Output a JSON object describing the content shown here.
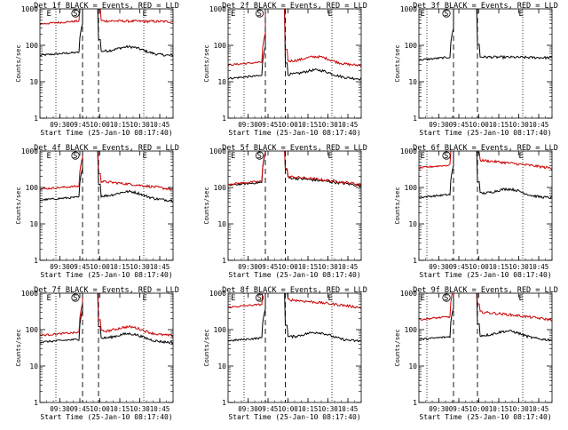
{
  "figure": {
    "xlabel": "Start Time (25-Jan-10 08:17:40)",
    "ylabel": "Counts/sec"
  },
  "chart_data": [
    {
      "type": "line",
      "title": "Det 1f BLACK = Events, RED = LLD",
      "ylim": [
        1,
        1000
      ],
      "yscale": "log",
      "x_ticks": [
        "09:30",
        "09:45",
        "10:00",
        "10:15",
        "10:30",
        "10:45"
      ],
      "y_ticks": [
        "1",
        "10",
        "100",
        "1000"
      ],
      "markers": [
        "E",
        "S",
        "E"
      ],
      "grid": false,
      "series": [
        {
          "name": "BLACK = Events",
          "color": "#000000",
          "base": 65,
          "shape": "hump"
        },
        {
          "name": "RED = LLD",
          "color": "#cc0000",
          "base": 470,
          "shape": "flat"
        }
      ]
    },
    {
      "type": "line",
      "title": "Det 2f BLACK = Events, RED = LLD",
      "ylim": [
        1,
        1000
      ],
      "yscale": "log",
      "x_ticks": [
        "09:30",
        "09:45",
        "10:00",
        "10:15",
        "10:30",
        "10:45"
      ],
      "y_ticks": [
        "1",
        "10",
        "100",
        "1000"
      ],
      "markers": [
        "E",
        "S",
        "E"
      ],
      "grid": false,
      "series": [
        {
          "name": "BLACK = Events",
          "color": "#000000",
          "base": 15,
          "shape": "hump"
        },
        {
          "name": "RED = LLD",
          "color": "#cc0000",
          "base": 35,
          "shape": "hump"
        }
      ]
    },
    {
      "type": "line",
      "title": "Det 3f BLACK = Events, RED = LLD",
      "ylim": [
        1,
        1000
      ],
      "yscale": "log",
      "x_ticks": [
        "09:30",
        "09:45",
        "10:00",
        "10:15",
        "10:30",
        "10:45"
      ],
      "y_ticks": [
        "1",
        "10",
        "100",
        "1000"
      ],
      "markers": [
        "E",
        "S",
        "E"
      ],
      "grid": false,
      "series": [
        {
          "name": "BLACK = Events",
          "color": "#000000",
          "base": 48,
          "shape": "flat"
        }
      ]
    },
    {
      "type": "line",
      "title": "Det 4f BLACK = Events, RED = LLD",
      "ylim": [
        1,
        1000
      ],
      "yscale": "log",
      "x_ticks": [
        "09:30",
        "09:45",
        "10:00",
        "10:15",
        "10:30",
        "10:45"
      ],
      "y_ticks": [
        "1",
        "10",
        "100",
        "1000"
      ],
      "markers": [
        "E",
        "S",
        "E"
      ],
      "grid": false,
      "series": [
        {
          "name": "BLACK = Events",
          "color": "#000000",
          "base": 55,
          "shape": "hump"
        },
        {
          "name": "RED = LLD",
          "color": "#cc0000",
          "base": 110,
          "shape": "decay"
        }
      ]
    },
    {
      "type": "line",
      "title": "Det 5f BLACK = Events, RED = LLD",
      "ylim": [
        1,
        1000
      ],
      "yscale": "log",
      "x_ticks": [
        "09:30",
        "09:45",
        "10:00",
        "10:15",
        "10:30",
        "10:45"
      ],
      "y_ticks": [
        "1",
        "10",
        "100",
        "1000"
      ],
      "markers": [
        "E",
        "S",
        "E"
      ],
      "grid": false,
      "series": [
        {
          "name": "BLACK = Events",
          "color": "#000000",
          "base": 140,
          "shape": "decay"
        },
        {
          "name": "RED = LLD",
          "color": "#cc0000",
          "base": 150,
          "shape": "decay"
        }
      ]
    },
    {
      "type": "line",
      "title": "Det 6f BLACK = Events, RED = LLD",
      "ylim": [
        1,
        1000
      ],
      "yscale": "log",
      "x_ticks": [
        "09:30",
        "09:45",
        "10:00",
        "10:15",
        "10:30",
        "10:45"
      ],
      "y_ticks": [
        "1",
        "10",
        "100",
        "1000"
      ],
      "markers": [
        "E",
        "S",
        "E"
      ],
      "grid": false,
      "series": [
        {
          "name": "BLACK = Events",
          "color": "#000000",
          "base": 65,
          "shape": "hump"
        },
        {
          "name": "RED = LLD",
          "color": "#cc0000",
          "base": 420,
          "shape": "decay"
        }
      ]
    },
    {
      "type": "line",
      "title": "Det 7f BLACK = Events, RED = LLD",
      "ylim": [
        1,
        1000
      ],
      "yscale": "log",
      "x_ticks": [
        "09:30",
        "09:45",
        "10:00",
        "10:15",
        "10:30",
        "10:45"
      ],
      "y_ticks": [
        "1",
        "10",
        "100",
        "1000"
      ],
      "markers": [
        "E",
        "S",
        "E"
      ],
      "grid": false,
      "series": [
        {
          "name": "BLACK = Events",
          "color": "#000000",
          "base": 55,
          "shape": "hump"
        },
        {
          "name": "RED = LLD",
          "color": "#cc0000",
          "base": 85,
          "shape": "hump"
        }
      ]
    },
    {
      "type": "line",
      "title": "Det 8f BLACK = Events, RED = LLD",
      "ylim": [
        1,
        1000
      ],
      "yscale": "log",
      "x_ticks": [
        "09:30",
        "09:45",
        "10:00",
        "10:15",
        "10:30",
        "10:45"
      ],
      "y_ticks": [
        "1",
        "10",
        "100",
        "1000"
      ],
      "markers": [
        "E",
        "S",
        "E"
      ],
      "grid": false,
      "series": [
        {
          "name": "BLACK = Events",
          "color": "#000000",
          "base": 60,
          "shape": "hump"
        },
        {
          "name": "RED = LLD",
          "color": "#cc0000",
          "base": 500,
          "shape": "decay"
        }
      ]
    },
    {
      "type": "line",
      "title": "Det 9f BLACK = Events, RED = LLD",
      "ylim": [
        1,
        1000
      ],
      "yscale": "log",
      "x_ticks": [
        "09:30",
        "09:45",
        "10:00",
        "10:15",
        "10:30",
        "10:45"
      ],
      "y_ticks": [
        "1",
        "10",
        "100",
        "1000"
      ],
      "markers": [
        "E",
        "S",
        "E"
      ],
      "grid": false,
      "series": [
        {
          "name": "BLACK = Events",
          "color": "#000000",
          "base": 65,
          "shape": "hump"
        },
        {
          "name": "RED = LLD",
          "color": "#cc0000",
          "base": 230,
          "shape": "decay"
        }
      ]
    }
  ]
}
